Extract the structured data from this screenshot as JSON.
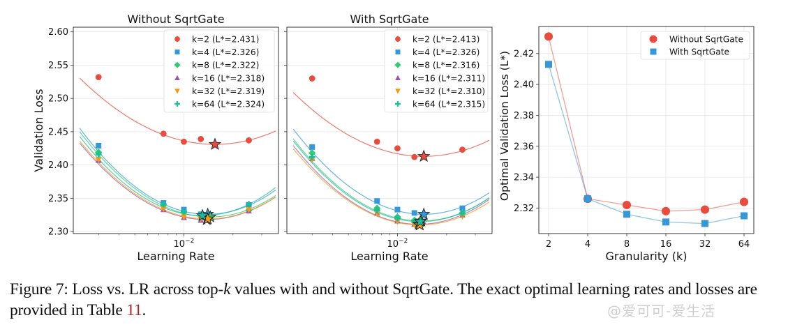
{
  "chart_data": [
    {
      "type": "scatter",
      "title": "Without SqrtGate",
      "xlabel": "Learning Rate",
      "ylabel": "Validation Loss",
      "xscale": "log",
      "xlim": [
        0.0021,
        0.038
      ],
      "ylim": [
        2.297,
        2.607
      ],
      "yticks": [
        2.3,
        2.35,
        2.4,
        2.45,
        2.5,
        2.55,
        2.6
      ],
      "ytick_labels": [
        "2.30",
        "2.35",
        "2.40",
        "2.45",
        "2.50",
        "2.55",
        "2.60"
      ],
      "xticks": [
        0.01
      ],
      "xtick_labels": [
        "10⁻²"
      ],
      "grid": true,
      "legend_position": "top-right",
      "series": [
        {
          "name": "k=2 (L*=2.431)",
          "k": 2,
          "color": "#e74c3c",
          "marker": "circle",
          "x": [
            0.003,
            0.0075,
            0.01,
            0.0127,
            0.025
          ],
          "y": [
            2.532,
            2.447,
            2.435,
            2.439,
            2.437
          ],
          "fit": {
            "a": 2.431,
            "xopt": 0.0155,
            "c": 0.145
          }
        },
        {
          "name": "k=4 (L*=2.326)",
          "k": 4,
          "color": "#3498db",
          "marker": "square",
          "x": [
            0.003,
            0.0075,
            0.01,
            0.0127,
            0.025
          ],
          "y": [
            2.429,
            2.343,
            2.333,
            2.326,
            2.34
          ],
          "fit": {
            "a": 2.326,
            "xopt": 0.014,
            "c": 0.21
          }
        },
        {
          "name": "k=8 (L*=2.322)",
          "k": 8,
          "color": "#2ecc71",
          "marker": "diamond",
          "x": [
            0.003,
            0.0075,
            0.01,
            0.0127,
            0.025
          ],
          "y": [
            2.419,
            2.34,
            2.329,
            2.323,
            2.332
          ],
          "fit": {
            "a": 2.322,
            "xopt": 0.0145,
            "c": 0.2
          }
        },
        {
          "name": "k=16 (L*=2.318)",
          "k": 16,
          "color": "#9b59b6",
          "marker": "triangle-up",
          "x": [
            0.003,
            0.0075,
            0.01,
            0.0127,
            0.025
          ],
          "y": [
            2.407,
            2.333,
            2.321,
            2.317,
            2.331
          ],
          "fit": {
            "a": 2.318,
            "xopt": 0.0138,
            "c": 0.19
          }
        },
        {
          "name": "k=32 (L*=2.319)",
          "k": 32,
          "color": "#f39c12",
          "marker": "triangle-down",
          "x": [
            0.003,
            0.0075,
            0.01,
            0.0127,
            0.025
          ],
          "y": [
            2.408,
            2.334,
            2.322,
            2.319,
            2.333
          ],
          "fit": {
            "a": 2.319,
            "xopt": 0.014,
            "c": 0.19
          }
        },
        {
          "name": "k=64 (L*=2.324)",
          "k": 64,
          "color": "#1abc9c",
          "marker": "plus",
          "x": [
            0.003,
            0.0075,
            0.01,
            0.0127,
            0.025
          ],
          "y": [
            2.416,
            2.341,
            2.33,
            2.325,
            2.341
          ],
          "fit": {
            "a": 2.324,
            "xopt": 0.013,
            "c": 0.21
          }
        }
      ]
    },
    {
      "type": "scatter",
      "title": "With SqrtGate",
      "xlabel": "Learning Rate",
      "ylabel": "",
      "xscale": "log",
      "xlim": [
        0.0021,
        0.038
      ],
      "ylim": [
        2.297,
        2.607
      ],
      "yticks": [
        2.3,
        2.35,
        2.4,
        2.45,
        2.5,
        2.55,
        2.6
      ],
      "xticks": [
        0.01
      ],
      "xtick_labels": [
        "10⁻²"
      ],
      "grid": true,
      "legend_position": "top-right",
      "series": [
        {
          "name": "k=2 (L*=2.413)",
          "k": 2,
          "color": "#e74c3c",
          "marker": "circle",
          "x": [
            0.003,
            0.0075,
            0.01,
            0.0127,
            0.025
          ],
          "y": [
            2.53,
            2.435,
            2.425,
            2.412,
            2.423
          ],
          "fit": {
            "a": 2.413,
            "xopt": 0.0145,
            "c": 0.15
          }
        },
        {
          "name": "k=4 (L*=2.326)",
          "k": 4,
          "color": "#3498db",
          "marker": "square",
          "x": [
            0.003,
            0.0075,
            0.01,
            0.0127,
            0.025
          ],
          "y": [
            2.427,
            2.346,
            2.333,
            2.328,
            2.335
          ],
          "fit": {
            "a": 2.326,
            "xopt": 0.0145,
            "c": 0.2
          }
        },
        {
          "name": "k=8 (L*=2.316)",
          "k": 8,
          "color": "#2ecc71",
          "marker": "diamond",
          "x": [
            0.003,
            0.0075,
            0.01,
            0.0127,
            0.025
          ],
          "y": [
            2.418,
            2.335,
            2.322,
            2.317,
            2.328
          ],
          "fit": {
            "a": 2.316,
            "xopt": 0.014,
            "c": 0.2
          }
        },
        {
          "name": "k=16 (L*=2.311)",
          "k": 16,
          "color": "#9b59b6",
          "marker": "triangle-up",
          "x": [
            0.003,
            0.0075,
            0.01,
            0.0127,
            0.025
          ],
          "y": [
            2.41,
            2.328,
            2.316,
            2.311,
            2.325
          ],
          "fit": {
            "a": 2.311,
            "xopt": 0.0135,
            "c": 0.2
          }
        },
        {
          "name": "k=32 (L*=2.310)",
          "k": 32,
          "color": "#f39c12",
          "marker": "triangle-down",
          "x": [
            0.003,
            0.0075,
            0.01,
            0.0127,
            0.025
          ],
          "y": [
            2.408,
            2.327,
            2.315,
            2.31,
            2.323
          ],
          "fit": {
            "a": 2.31,
            "xopt": 0.0137,
            "c": 0.19
          }
        },
        {
          "name": "k=64 (L*=2.315)",
          "k": 64,
          "color": "#1abc9c",
          "marker": "plus",
          "x": [
            0.003,
            0.0075,
            0.01,
            0.0127,
            0.025
          ],
          "y": [
            2.412,
            2.332,
            2.32,
            2.315,
            2.327
          ],
          "fit": {
            "a": 2.315,
            "xopt": 0.0138,
            "c": 0.2
          }
        }
      ]
    },
    {
      "type": "line",
      "title": "",
      "xlabel": "Granularity (k)",
      "ylabel": "Optimal Validation Loss (L*)",
      "categories": [
        "2",
        "4",
        "8",
        "16",
        "32",
        "64"
      ],
      "ylim": [
        2.3035,
        2.4375
      ],
      "yticks": [
        2.32,
        2.34,
        2.36,
        2.38,
        2.4,
        2.42
      ],
      "ytick_labels": [
        "2.32",
        "2.34",
        "2.36",
        "2.38",
        "2.40",
        "2.42"
      ],
      "grid": true,
      "legend_position": "top-right",
      "series": [
        {
          "name": "Without SqrtGate",
          "color": "#e74c3c",
          "marker": "circle",
          "values": [
            2.431,
            2.326,
            2.322,
            2.318,
            2.319,
            2.324
          ]
        },
        {
          "name": "With SqrtGate",
          "color": "#3498db",
          "marker": "square",
          "values": [
            2.413,
            2.326,
            2.316,
            2.311,
            2.31,
            2.315
          ]
        }
      ]
    }
  ],
  "caption": {
    "text_before": "Figure 7: Loss vs. LR across top-",
    "k_italic": "k",
    "text_middle": " values with and without SqrtGate. The exact optimal learning rates and losses are provided in Table ",
    "table_ref": "11",
    "text_after": "."
  },
  "watermark": "@爱可可-爱生活"
}
